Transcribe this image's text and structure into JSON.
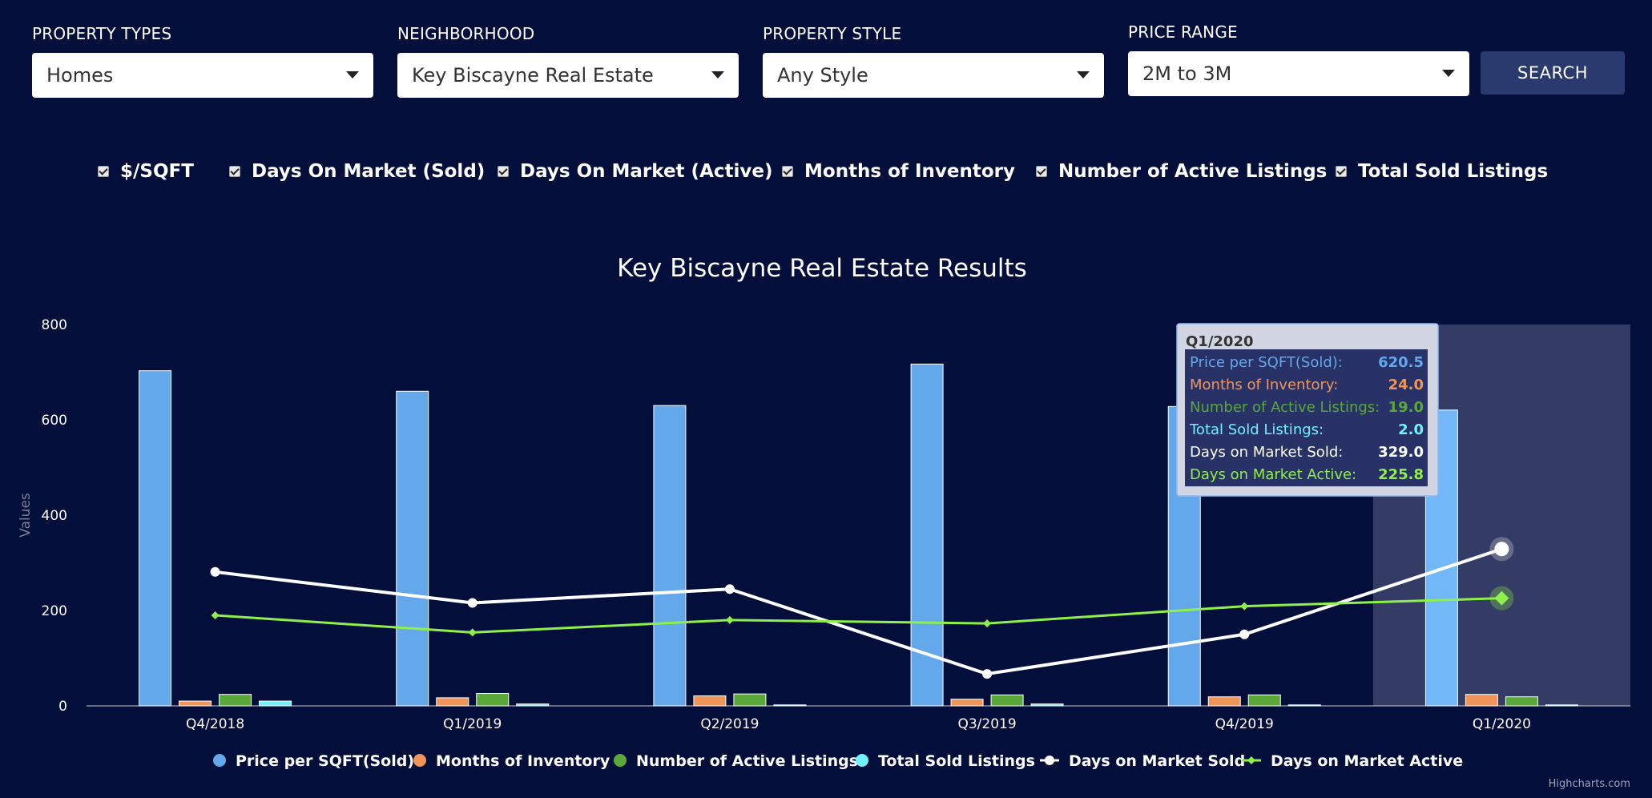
{
  "filters": [
    {
      "label": "PROPERTY TYPES",
      "value": "Homes"
    },
    {
      "label": "NEIGHBORHOOD",
      "value": "Key Biscayne Real Estate"
    },
    {
      "label": "PROPERTY STYLE",
      "value": "Any Style"
    },
    {
      "label": "PRICE RANGE",
      "value": "2M to 3M"
    }
  ],
  "search_label": "SEARCH",
  "toggles": [
    {
      "label": "$/SQFT",
      "checked": true
    },
    {
      "label": "Days On Market (Sold)",
      "checked": true
    },
    {
      "label": "Days On Market (Active)",
      "checked": true
    },
    {
      "label": "Months of Inventory",
      "checked": true
    },
    {
      "label": "Number of Active Listings",
      "checked": true
    },
    {
      "label": "Total Sold Listings",
      "checked": true
    }
  ],
  "credit": "Highcharts.com",
  "colors": {
    "background": "#040e3b",
    "price": "#62a8ea",
    "months": "#f0955a",
    "active_listings": "#5aa83a",
    "sold_listings": "#72f0fb",
    "dom_sold": "#ffffff",
    "dom_active": "#8ef04a",
    "highlight": "#343b64"
  },
  "chart_data": {
    "type": "bar",
    "title": "Key Biscayne Real Estate Results",
    "ylabel": "Values",
    "xlabel": "",
    "ylim": [
      0,
      800
    ],
    "yticks": [
      "0",
      "200",
      "400",
      "600",
      "800"
    ],
    "categories": [
      "Q4/2018",
      "Q1/2019",
      "Q2/2019",
      "Q3/2019",
      "Q4/2019",
      "Q1/2020"
    ],
    "series": [
      {
        "name": "Price per SQFT(Sold)",
        "kind": "column",
        "values": [
          703,
          660,
          630,
          717,
          628,
          620.5
        ]
      },
      {
        "name": "Months of Inventory",
        "kind": "column",
        "values": [
          10,
          17,
          21,
          14,
          19,
          24.0
        ]
      },
      {
        "name": "Number of Active Listings",
        "kind": "column",
        "values": [
          24,
          26,
          25,
          23,
          23,
          19.0
        ]
      },
      {
        "name": "Total Sold Listings",
        "kind": "column",
        "values": [
          10,
          4,
          2,
          4,
          2,
          2.0
        ]
      },
      {
        "name": "Days on Market Sold",
        "kind": "line",
        "values": [
          281,
          216,
          245,
          67,
          150,
          329.0
        ]
      },
      {
        "name": "Days on Market Active",
        "kind": "line",
        "values": [
          190,
          154,
          180,
          173,
          209,
          225.8
        ]
      }
    ],
    "highlighted_category": "Q1/2020",
    "tooltip": {
      "header": "Q1/2020",
      "rows": [
        {
          "label": "Price per SQFT(Sold):",
          "value": "620.5"
        },
        {
          "label": "Months of Inventory:",
          "value": "24.0"
        },
        {
          "label": "Number of Active Listings:",
          "value": "19.0"
        },
        {
          "label": "Total Sold Listings:",
          "value": "2.0"
        },
        {
          "label": "Days on Market Sold:",
          "value": "329.0"
        },
        {
          "label": "Days on Market Active:",
          "value": "225.8"
        }
      ]
    }
  }
}
